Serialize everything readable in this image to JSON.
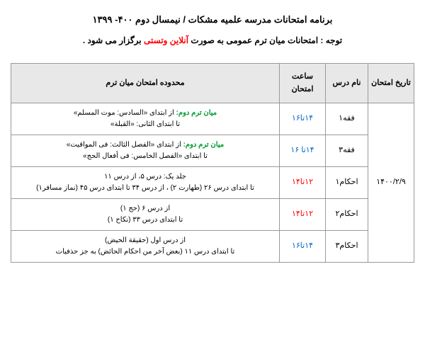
{
  "title": "برنامه امتحانات مدرسه علمیه مشکات / نیمسال دوم ۴۰۰- ۱۳۹۹",
  "notice_prefix": "توجه : امتحانات میان ترم عمومی به صورت ",
  "notice_highlight": "آنلاین وتستی",
  "notice_suffix": " برگزار می شود .",
  "headers": {
    "date": "تاریخ امتحان",
    "course": "نام درس",
    "time": "ساعت امتحان",
    "scope": "محدوده امتحان میان ترم"
  },
  "date": "۱۴۰۰/۲/۹",
  "rows": [
    {
      "course": "فقه۱",
      "time": "۱۴تا۱۶",
      "time_color": "time-blue",
      "scope_prefix": "میان ترم دوم:",
      "scope_line1": " از ابتدای «السادس: موت المسلم»",
      "scope_line2": "تا ابتدای الثانی: «القبلة»"
    },
    {
      "course": "فقه۳",
      "time": "۱۴تا ۱۶",
      "time_color": "time-blue",
      "scope_prefix": "میان ترم دوم:",
      "scope_line1": " از ابتدای «الفصل الثالث: فی المواقیت»",
      "scope_line2": "تا ابتدای «الفصل الخامس: فی أفعال الحج»"
    },
    {
      "course": "احکام۱",
      "time": "۱۲تا۱۴",
      "time_color": "time-red",
      "scope_prefix": "",
      "scope_line1": "جلد یک: درس ۵، از درس ۱۱",
      "scope_line2": "تا ابتدای درس ۲۶ (طهارت ۲) ، از درس ۳۴ تا ابتدای درس ۴۵ (نماز مسافر۱)"
    },
    {
      "course": "احکام۲",
      "time": "۱۲تا۱۴",
      "time_color": "time-red",
      "scope_prefix": "",
      "scope_line1": "از درس ۶ (حج ۱)",
      "scope_line2": "تا ابتدای درس ۳۳ (نکاح ۱)"
    },
    {
      "course": "احکام۳",
      "time": "۱۴تا۱۶",
      "time_color": "time-blue",
      "scope_prefix": "",
      "scope_line1": "از درس اول (حقیقة الحیض)",
      "scope_line2": "تا ابتدای درس ۱۱ (بعض آخر من احکام الحائض) به جز حذفیات"
    }
  ]
}
